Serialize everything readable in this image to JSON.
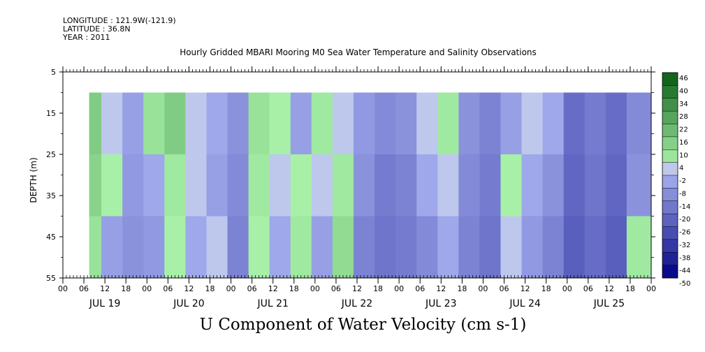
{
  "header": {
    "longitude": "LONGITUDE : 121.9W(-121.9)",
    "latitude": "LATITUDE : 36.8N",
    "year": "YEAR : 2011"
  },
  "chart_data": {
    "type": "heatmap",
    "title": "Hourly Gridded MBARI Mooring M0 Sea Water Temperature and Salinity Observations",
    "xlabel_bottom": "U Component of Water Velocity (cm s-1)",
    "ylabel": "DEPTH (m)",
    "ylim": [
      5,
      55
    ],
    "y_inverted": true,
    "y_ticks": [
      5,
      15,
      25,
      35,
      45,
      55
    ],
    "x_range_hours": [
      0,
      168
    ],
    "x_hour_ticks": [
      "00",
      "06",
      "12",
      "18",
      "00",
      "06",
      "12",
      "18",
      "00",
      "06",
      "12",
      "18",
      "00",
      "06",
      "12",
      "18",
      "00",
      "06",
      "12",
      "18",
      "00",
      "06",
      "12",
      "18",
      "00",
      "06",
      "12",
      "18",
      "00"
    ],
    "x_day_labels": [
      "JUL 19",
      "JUL 20",
      "JUL 21",
      "JUL 22",
      "JUL 23",
      "JUL 24",
      "JUL 25"
    ],
    "data_depth_range": [
      10,
      55
    ],
    "data_start_hour": 7.5,
    "colorbar": {
      "labels": [
        "46",
        "40",
        "34",
        "28",
        "22",
        "16",
        "10",
        "4",
        "-2",
        "-8",
        "-14",
        "-20",
        "-26",
        "-32",
        "-38",
        "-44",
        "-50"
      ],
      "min": -50,
      "max": 46,
      "step": 3
    },
    "u_velocity_by_period": {
      "time_hours": [
        8,
        14,
        20,
        26,
        32,
        38,
        44,
        50,
        56,
        62,
        68,
        74,
        80,
        86,
        92,
        98,
        104,
        110,
        116,
        122,
        128,
        134,
        140,
        146,
        152,
        158,
        164
      ],
      "shallow_10_25m": [
        14,
        -2,
        -6,
        8,
        14,
        2,
        -4,
        -10,
        8,
        4,
        -6,
        6,
        2,
        -8,
        -12,
        -10,
        2,
        6,
        -10,
        -14,
        -6,
        -2,
        -4,
        -20,
        -16,
        -20,
        -12
      ],
      "mid_25_40m": [
        12,
        4,
        -8,
        -4,
        6,
        -2,
        -6,
        -12,
        6,
        2,
        4,
        2,
        6,
        -10,
        -16,
        -14,
        -4,
        2,
        -12,
        -16,
        4,
        -4,
        -10,
        -22,
        -18,
        -22,
        -10
      ],
      "deep_40_55m": [
        8,
        -6,
        -10,
        -8,
        4,
        -4,
        -2,
        -14,
        4,
        -4,
        6,
        -6,
        10,
        -14,
        -18,
        -16,
        -12,
        -4,
        -14,
        -18,
        2,
        -8,
        -14,
        -24,
        -20,
        -24,
        6
      ]
    }
  }
}
